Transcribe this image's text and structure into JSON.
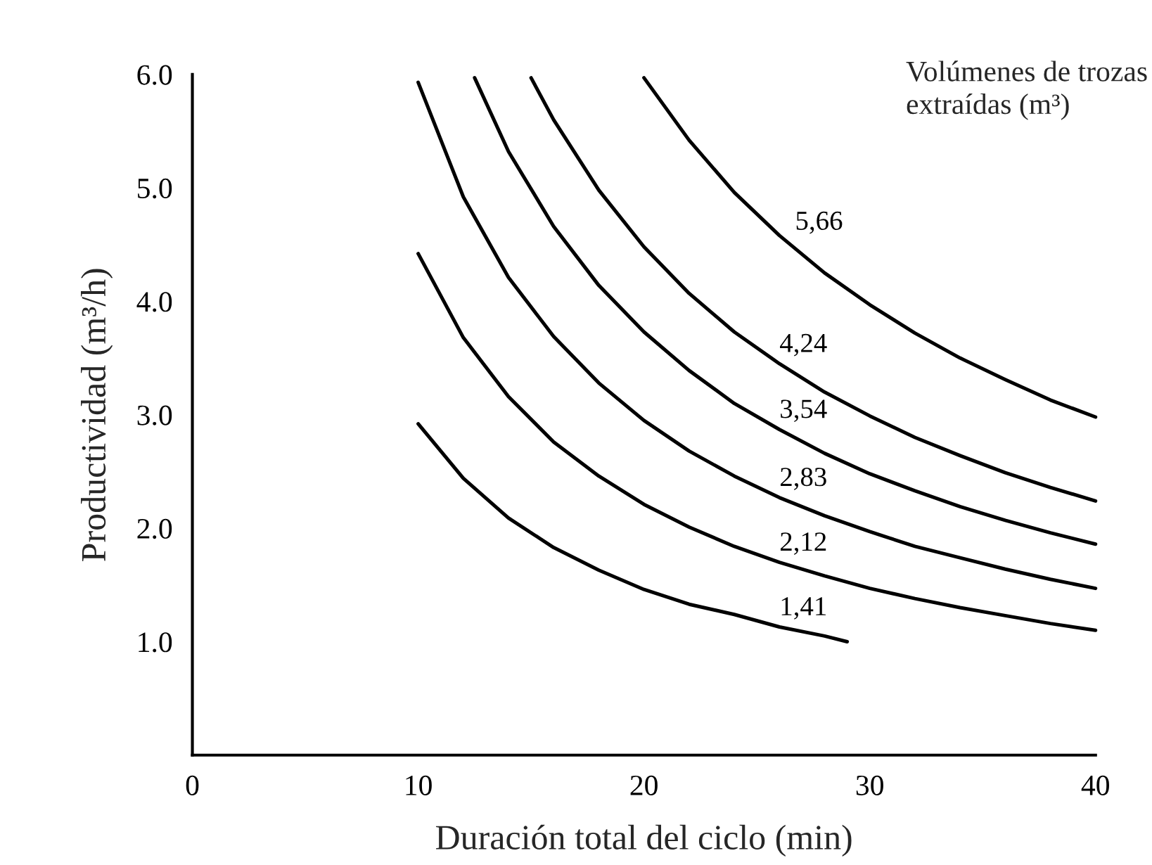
{
  "chart_data": {
    "type": "line",
    "xlabel": "Duración total del ciclo (min)",
    "ylabel": "Productividad (m³/h)",
    "legend_title": "Volúmenes de trozas\nextraídas (m³)",
    "xlim": [
      0,
      40
    ],
    "xticks": [
      0,
      10,
      20,
      30,
      40
    ],
    "ylim": [
      0,
      6.0
    ],
    "yticks": [
      {
        "value": 1,
        "label": "1.0"
      },
      {
        "value": 2,
        "label": "2.0"
      },
      {
        "value": 3,
        "label": "3.0"
      },
      {
        "value": 4,
        "label": "4.0"
      },
      {
        "value": 5,
        "label": "5.0"
      },
      {
        "value": 6,
        "label": "6.0"
      }
    ],
    "grid": false,
    "marker": "none",
    "line_style": "solid",
    "series": [
      {
        "name": "1,41",
        "color": "#000000",
        "x": [
          10,
          12,
          14,
          16,
          18,
          20,
          22,
          24,
          26,
          28,
          29
        ],
        "values": [
          2.92,
          2.44,
          2.09,
          1.83,
          1.63,
          1.46,
          1.33,
          1.24,
          1.13,
          1.05,
          1.0
        ]
      },
      {
        "name": "2,12",
        "color": "#000000",
        "x": [
          10,
          12,
          14,
          16,
          18,
          20,
          22,
          24,
          26,
          28,
          30,
          32,
          34,
          36,
          38,
          40
        ],
        "values": [
          4.42,
          3.68,
          3.16,
          2.76,
          2.46,
          2.21,
          2.01,
          1.84,
          1.7,
          1.58,
          1.47,
          1.38,
          1.3,
          1.23,
          1.16,
          1.1
        ]
      },
      {
        "name": "2,83",
        "color": "#000000",
        "x": [
          10,
          12,
          14,
          16,
          18,
          20,
          22,
          24,
          26,
          28,
          30,
          32,
          34,
          36,
          38,
          40
        ],
        "values": [
          5.93,
          4.92,
          4.21,
          3.69,
          3.28,
          2.95,
          2.68,
          2.46,
          2.27,
          2.11,
          1.97,
          1.84,
          1.74,
          1.64,
          1.55,
          1.47
        ]
      },
      {
        "name": "3,54",
        "color": "#000000",
        "x": [
          12.5,
          14,
          16,
          18,
          20,
          22,
          24,
          26,
          28,
          30,
          32,
          34,
          36,
          38,
          40
        ],
        "values": [
          5.97,
          5.32,
          4.66,
          4.14,
          3.73,
          3.39,
          3.1,
          2.87,
          2.66,
          2.48,
          2.33,
          2.19,
          2.07,
          1.96,
          1.86
        ]
      },
      {
        "name": "4,24",
        "color": "#000000",
        "x": [
          15,
          16,
          18,
          20,
          22,
          24,
          26,
          28,
          30,
          32,
          34,
          36,
          38,
          40
        ],
        "values": [
          5.97,
          5.6,
          4.98,
          4.48,
          4.07,
          3.73,
          3.45,
          3.2,
          2.99,
          2.8,
          2.64,
          2.49,
          2.36,
          2.24
        ]
      },
      {
        "name": "5,66",
        "color": "#000000",
        "x": [
          20,
          22,
          24,
          26,
          28,
          30,
          32,
          34,
          36,
          38,
          40
        ],
        "values": [
          5.97,
          5.42,
          4.96,
          4.58,
          4.25,
          3.97,
          3.72,
          3.5,
          3.31,
          3.13,
          2.98
        ]
      }
    ]
  }
}
